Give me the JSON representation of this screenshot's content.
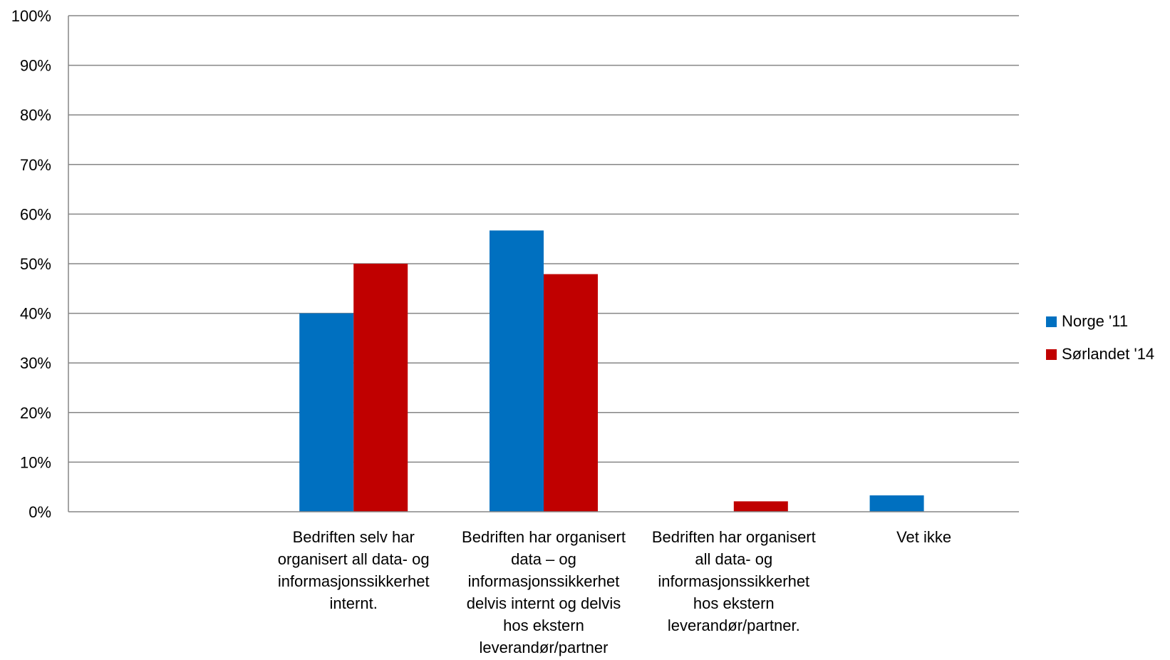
{
  "chart_data": {
    "type": "bar",
    "categories": [
      "",
      "Bedriften selv har\norganisert all data- og\ninformasjonssikkerhet\ninternt.",
      "Bedriften har organisert\ndata – og\ninformasjonssikkerhet\ndelvis internt og delvis\nhos ekstern\nleverandør/partner",
      "Bedriften har organisert\nall data- og\ninformasjonssikkerhet\nhos ekstern\nleverandør/partner.",
      "Vet ikke"
    ],
    "series": [
      {
        "name": "Norge '11",
        "color": "#0070C0",
        "values": [
          0,
          40,
          56.7,
          0,
          3.3
        ]
      },
      {
        "name": "Sørlandet '14",
        "color": "#C00000",
        "values": [
          0,
          50,
          47.9,
          2.1,
          0
        ]
      }
    ],
    "yticks": [
      "0%",
      "10%",
      "20%",
      "30%",
      "40%",
      "50%",
      "60%",
      "70%",
      "80%",
      "90%",
      "100%"
    ],
    "ylim": [
      0,
      100
    ],
    "grid": true,
    "legend_position": "right",
    "title": "",
    "xlabel": "",
    "ylabel": ""
  }
}
